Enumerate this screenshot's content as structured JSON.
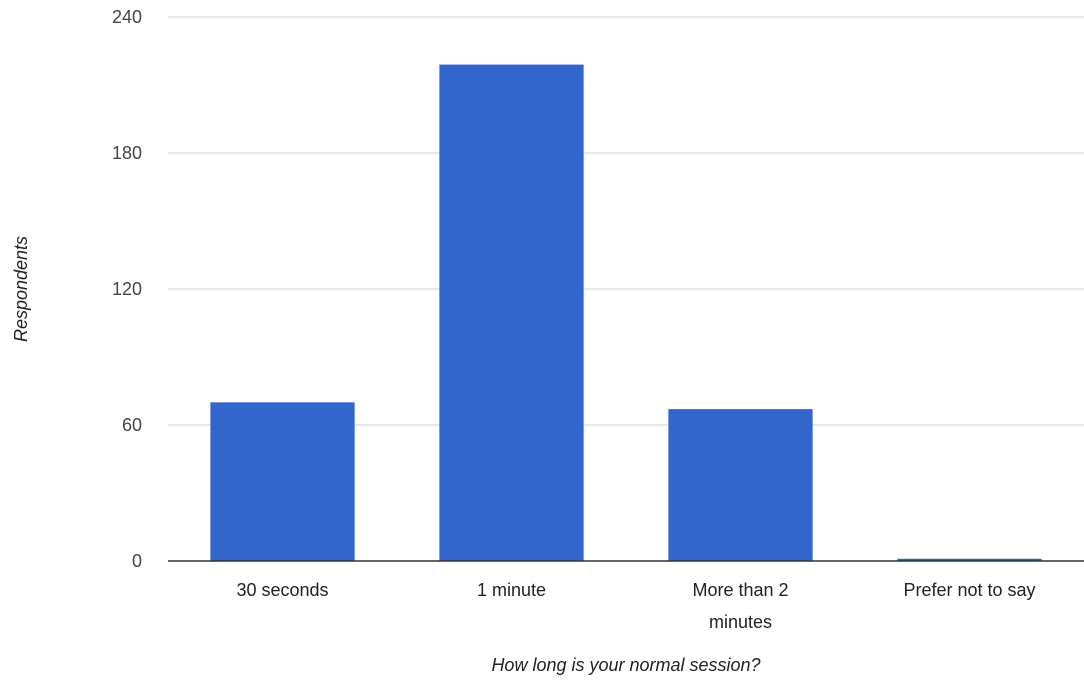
{
  "chart_data": {
    "type": "bar",
    "title": "",
    "xlabel": "How long is your normal session?",
    "ylabel": "Respondents",
    "categories": [
      "30 seconds",
      "1 minute",
      "More than 2 minutes",
      "Prefer not to say"
    ],
    "category_label_lines": [
      [
        "30 seconds"
      ],
      [
        "1 minute"
      ],
      [
        "More than 2",
        "minutes"
      ],
      [
        "Prefer not to say"
      ]
    ],
    "values": [
      70,
      219,
      67,
      1
    ],
    "ylim": [
      0,
      240
    ],
    "yticks": [
      0,
      60,
      120,
      180,
      240
    ],
    "grid": true,
    "legend": "none",
    "bar_color": "#3366cc",
    "grid_color": "#cccccc",
    "axis_color": "#333333"
  }
}
